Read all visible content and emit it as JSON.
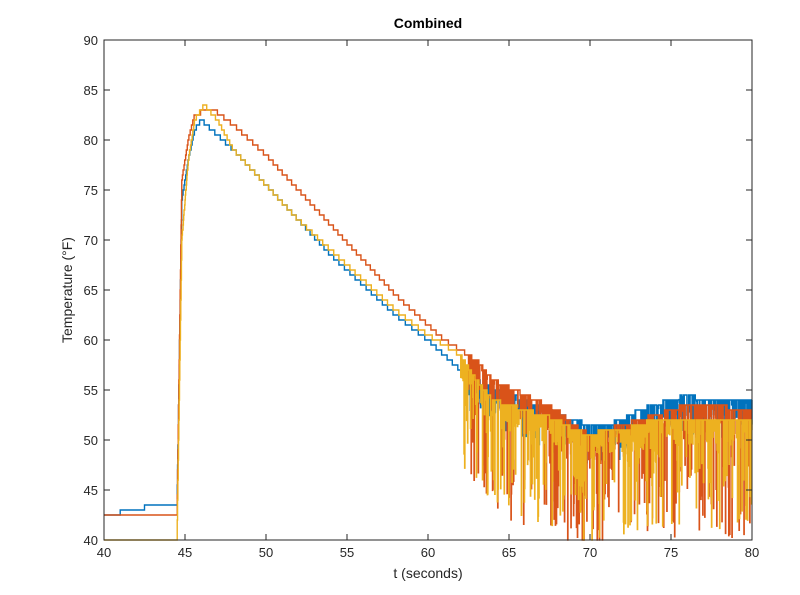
{
  "chart_data": {
    "type": "line",
    "title": "Combined",
    "xlabel": "t (seconds)",
    "ylabel": "Temperature (°F)",
    "xlim": [
      40,
      80
    ],
    "ylim": [
      40,
      90
    ],
    "x_ticks": [
      40,
      45,
      50,
      55,
      60,
      65,
      70,
      75,
      80
    ],
    "y_ticks": [
      40,
      45,
      50,
      55,
      60,
      65,
      70,
      75,
      80,
      85,
      90
    ],
    "grid": false,
    "legend": "none",
    "series": [
      {
        "color": "#0072BD",
        "x": [
          40,
          42,
          43,
          44.5,
          44.8,
          45.2,
          45.6,
          46.0,
          48,
          50,
          52,
          54,
          56,
          58,
          60,
          61,
          62,
          63,
          64,
          66,
          68,
          69,
          70,
          71,
          72,
          73,
          74,
          75,
          76,
          77,
          78,
          79,
          80
        ],
        "y": [
          42.5,
          43,
          43.5,
          43.5,
          74,
          78,
          81,
          82,
          79,
          75.5,
          72,
          68.5,
          65.5,
          62.5,
          60,
          58.5,
          57,
          56,
          55,
          54,
          52.5,
          52,
          51.5,
          51.5,
          52,
          53,
          53.5,
          54,
          54.5,
          54,
          54,
          54,
          54
        ],
        "noise": {
          "from": 62.5,
          "to": 80,
          "depth": 4
        }
      },
      {
        "color": "#D95319",
        "x": [
          40,
          43,
          44.5,
          44.8,
          45.2,
          45.6,
          46.3,
          46.8,
          48,
          50,
          52,
          54,
          56,
          58,
          60,
          61,
          62,
          63,
          64,
          66,
          68,
          69,
          70,
          71,
          72,
          73,
          74,
          75,
          76,
          77,
          78,
          79,
          80
        ],
        "y": [
          42.5,
          42.5,
          42.5,
          76,
          80,
          82.5,
          83,
          83,
          81.5,
          78.5,
          75,
          71.5,
          68,
          64.5,
          61.5,
          60,
          59,
          58,
          56,
          54.5,
          53,
          51.5,
          50.5,
          51,
          51.5,
          52,
          52.5,
          53,
          53.5,
          53.5,
          53.5,
          53,
          53
        ],
        "noise": {
          "from": 62.5,
          "to": 80,
          "depth": 13
        }
      },
      {
        "color": "#EDB120",
        "x": [
          40,
          44.5,
          44.8,
          45.2,
          45.6,
          46.2,
          47,
          48,
          50,
          52,
          54,
          56,
          58,
          60,
          61,
          62,
          63,
          64,
          66,
          68,
          69,
          70,
          71,
          72,
          73,
          74,
          75,
          76,
          77,
          78,
          79,
          80
        ],
        "y": [
          40,
          40,
          70,
          78,
          82,
          83.5,
          82,
          79,
          75.5,
          72,
          69,
          66,
          63,
          60.5,
          59.5,
          58.5,
          56,
          54,
          53,
          52,
          51,
          50.5,
          51,
          51,
          51.5,
          52,
          52,
          52,
          52,
          52,
          52,
          52
        ],
        "noise": {
          "from": 62,
          "to": 80,
          "depth": 11
        }
      }
    ]
  }
}
